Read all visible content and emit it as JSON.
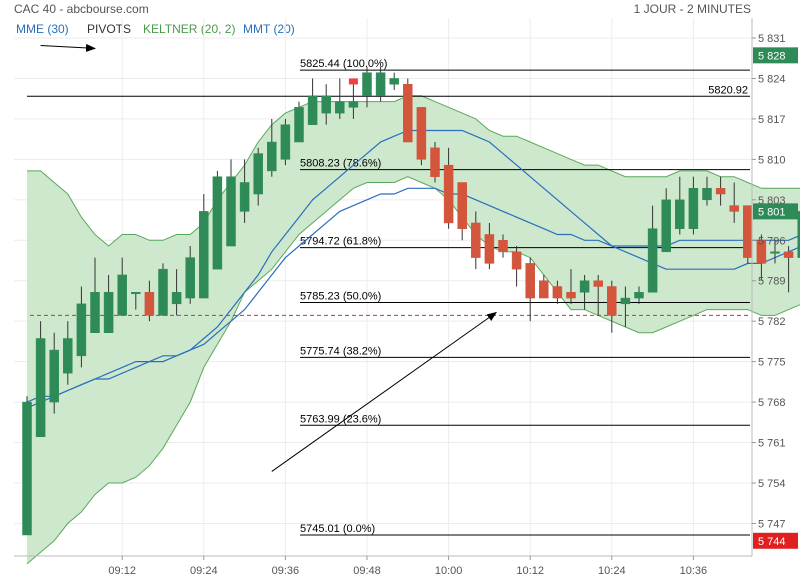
{
  "header": {
    "title": "CAC 40 - abcbourse.com",
    "period": "1 JOUR - 2 MINUTES"
  },
  "legend": {
    "mme": "MME (30)",
    "pivots": "PIVOTS",
    "keltner": "KELTNER (20, 2)",
    "mmt": "MMT (20)"
  },
  "colors": {
    "up": "#2e8b57",
    "down": "#d2553c",
    "band_fill": "#cde8cd",
    "band_line": "#5aa85a",
    "ma_line": "#2a6ebd",
    "level_line": "#000000",
    "last_price_box": "#2e8b57",
    "low_box": "#e02020",
    "dashed_line": "#d03030"
  },
  "chart_data": {
    "type": "candlestick",
    "title": "CAC 40 - abcbourse.com",
    "ylim": [
      5740,
      5834
    ],
    "y_ticks": [
      5831,
      5824,
      5817,
      5810,
      5803,
      5796,
      5789,
      5782,
      5775,
      5768,
      5761,
      5754,
      5747
    ],
    "y_tick_labels": [
      "5 831",
      "5 824",
      "5 817",
      "5 810",
      "5 803",
      "5 796",
      "5 789",
      "5 782",
      "5 775",
      "5 768",
      "5 761",
      "5 754",
      "5 747"
    ],
    "x_tick_labels": [
      {
        "i": 7,
        "label": "09:12"
      },
      {
        "i": 13,
        "label": "09:24"
      },
      {
        "i": 19,
        "label": "09:36"
      },
      {
        "i": 25,
        "label": "09:48"
      },
      {
        "i": 31,
        "label": "10:00"
      },
      {
        "i": 37,
        "label": "10:12"
      },
      {
        "i": 43,
        "label": "10:24"
      },
      {
        "i": 49,
        "label": "10:36"
      }
    ],
    "candles": [
      {
        "o": 5745,
        "h": 5769,
        "l": 5745,
        "c": 5768
      },
      {
        "o": 5762,
        "h": 5782,
        "l": 5762,
        "c": 5779
      },
      {
        "o": 5768,
        "h": 5780,
        "l": 5766,
        "c": 5777
      },
      {
        "o": 5773,
        "h": 5782,
        "l": 5771,
        "c": 5779
      },
      {
        "o": 5776,
        "h": 5788,
        "l": 5774,
        "c": 5785
      },
      {
        "o": 5780,
        "h": 5793,
        "l": 5780,
        "c": 5787
      },
      {
        "o": 5780,
        "h": 5790,
        "l": 5780,
        "c": 5787
      },
      {
        "o": 5783,
        "h": 5793,
        "l": 5783,
        "c": 5790
      },
      {
        "o": 5787,
        "h": 5787,
        "l": 5784,
        "c": 5787
      },
      {
        "o": 5787,
        "h": 5789,
        "l": 5782,
        "c": 5783
      },
      {
        "o": 5783,
        "h": 5792,
        "l": 5783,
        "c": 5791
      },
      {
        "o": 5785,
        "h": 5791,
        "l": 5783,
        "c": 5787
      },
      {
        "o": 5786,
        "h": 5795,
        "l": 5785,
        "c": 5793
      },
      {
        "o": 5786,
        "h": 5804,
        "l": 5786,
        "c": 5801
      },
      {
        "o": 5791,
        "h": 5808,
        "l": 5791,
        "c": 5807
      },
      {
        "o": 5795,
        "h": 5810,
        "l": 5795,
        "c": 5807
      },
      {
        "o": 5801,
        "h": 5810,
        "l": 5799,
        "c": 5806
      },
      {
        "o": 5804,
        "h": 5812,
        "l": 5802,
        "c": 5811
      },
      {
        "o": 5808,
        "h": 5817,
        "l": 5807,
        "c": 5813
      },
      {
        "o": 5810,
        "h": 5817,
        "l": 5809,
        "c": 5816
      },
      {
        "o": 5813,
        "h": 5820,
        "l": 5813,
        "c": 5819
      },
      {
        "o": 5816,
        "h": 5824,
        "l": 5816,
        "c": 5821
      },
      {
        "o": 5818,
        "h": 5823,
        "l": 5816,
        "c": 5821
      },
      {
        "o": 5818,
        "h": 5824,
        "l": 5817,
        "c": 5820
      },
      {
        "o": 5819,
        "h": 5824,
        "l": 5817,
        "c": 5820
      },
      {
        "o": 5821,
        "h": 5826,
        "l": 5819,
        "c": 5825
      },
      {
        "o": 5821,
        "h": 5826,
        "l": 5820,
        "c": 5825
      },
      {
        "o": 5823,
        "h": 5825,
        "l": 5822,
        "c": 5824
      },
      {
        "o": 5823,
        "h": 5824,
        "l": 5813,
        "c": 5813
      },
      {
        "o": 5819,
        "h": 5819,
        "l": 5809,
        "c": 5810
      },
      {
        "o": 5812,
        "h": 5813,
        "l": 5806,
        "c": 5807
      },
      {
        "o": 5809,
        "h": 5812,
        "l": 5798,
        "c": 5799
      },
      {
        "o": 5806,
        "h": 5806,
        "l": 5796,
        "c": 5798
      },
      {
        "o": 5799,
        "h": 5801,
        "l": 5791,
        "c": 5793
      },
      {
        "o": 5797,
        "h": 5799,
        "l": 5791,
        "c": 5792
      },
      {
        "o": 5796,
        "h": 5797,
        "l": 5793,
        "c": 5794
      },
      {
        "o": 5794,
        "h": 5795,
        "l": 5788,
        "c": 5791
      },
      {
        "o": 5792,
        "h": 5793,
        "l": 5782,
        "c": 5786
      },
      {
        "o": 5789,
        "h": 5790,
        "l": 5786,
        "c": 5786
      },
      {
        "o": 5788,
        "h": 5789,
        "l": 5785,
        "c": 5786
      },
      {
        "o": 5787,
        "h": 5791,
        "l": 5785,
        "c": 5786
      },
      {
        "o": 5787,
        "h": 5790,
        "l": 5784,
        "c": 5789
      },
      {
        "o": 5789,
        "h": 5790,
        "l": 5783,
        "c": 5788
      },
      {
        "o": 5788,
        "h": 5789,
        "l": 5780,
        "c": 5783
      },
      {
        "o": 5785,
        "h": 5788,
        "l": 5781,
        "c": 5786
      },
      {
        "o": 5786,
        "h": 5788,
        "l": 5785,
        "c": 5787
      },
      {
        "o": 5787,
        "h": 5802,
        "l": 5787,
        "c": 5798
      },
      {
        "o": 5794,
        "h": 5805,
        "l": 5794,
        "c": 5803
      },
      {
        "o": 5798,
        "h": 5807,
        "l": 5797,
        "c": 5803
      },
      {
        "o": 5798,
        "h": 5807,
        "l": 5797,
        "c": 5805
      },
      {
        "o": 5803,
        "h": 5807,
        "l": 5802,
        "c": 5805
      },
      {
        "o": 5805,
        "h": 5807,
        "l": 5802,
        "c": 5804
      },
      {
        "o": 5802,
        "h": 5806,
        "l": 5799,
        "c": 5801
      },
      {
        "o": 5802,
        "h": 5802,
        "l": 5792,
        "c": 5793
      },
      {
        "o": 5796,
        "h": 5797,
        "l": 5789,
        "c": 5792
      },
      {
        "o": 5794,
        "h": 5796,
        "l": 5792,
        "c": 5794
      },
      {
        "o": 5794,
        "h": 5795,
        "l": 5787,
        "c": 5793
      },
      {
        "o": 5793,
        "h": 5801,
        "l": 5793,
        "c": 5801
      }
    ],
    "keltner": {
      "name": "KELTNER (20, 2)",
      "upper": [
        5808,
        5808,
        5806,
        5804,
        5800,
        5797,
        5795,
        5797,
        5797,
        5796,
        5796,
        5797,
        5797,
        5799,
        5803,
        5806,
        5809,
        5813,
        5816,
        5818,
        5819,
        5820,
        5820,
        5820,
        5820,
        5820,
        5820,
        5820,
        5821,
        5821,
        5820,
        5819,
        5818,
        5817,
        5815,
        5814,
        5814,
        5813,
        5812,
        5811,
        5810,
        5809,
        5809,
        5808,
        5807,
        5807,
        5807,
        5807,
        5808,
        5808,
        5808,
        5807,
        5807,
        5806,
        5805,
        5805,
        5805,
        5805
      ],
      "lower": [
        5740,
        5742,
        5744,
        5747,
        5749,
        5752,
        5754,
        5754,
        5755,
        5757,
        5760,
        5764,
        5768,
        5774,
        5778,
        5782,
        5787,
        5789,
        5791,
        5794,
        5797,
        5799,
        5801,
        5803,
        5805,
        5806,
        5806,
        5806,
        5807,
        5806,
        5805,
        5803,
        5800,
        5797,
        5795,
        5794,
        5794,
        5793,
        5790,
        5787,
        5784,
        5784,
        5783,
        5782,
        5781,
        5780,
        5780,
        5781,
        5782,
        5783,
        5784,
        5784,
        5784,
        5784,
        5783,
        5783,
        5784,
        5785
      ]
    },
    "mme": {
      "name": "MME (30)",
      "values": [
        5767,
        5768,
        5769,
        5770,
        5771,
        5772,
        5772,
        5773,
        5774,
        5775,
        5776,
        5776,
        5777,
        5778,
        5780,
        5782,
        5784,
        5787,
        5790,
        5793,
        5795,
        5797,
        5799,
        5801,
        5802,
        5803,
        5804,
        5804,
        5805,
        5805,
        5805,
        5804,
        5804,
        5803,
        5802,
        5801,
        5800,
        5799,
        5798,
        5797,
        5797,
        5796,
        5796,
        5795,
        5795,
        5795,
        5795,
        5795,
        5796,
        5796,
        5796,
        5796,
        5796,
        5796,
        5796,
        5796,
        5796,
        5797
      ]
    },
    "mmt": {
      "name": "MMT (20)",
      "values": [
        5768,
        5769,
        5769,
        5770,
        5771,
        5772,
        5773,
        5774,
        5775,
        5775,
        5775,
        5776,
        5777,
        5779,
        5781,
        5784,
        5787,
        5790,
        5794,
        5797,
        5800,
        5803,
        5805,
        5807,
        5809,
        5811,
        5813,
        5814,
        5815,
        5815,
        5815,
        5815,
        5815,
        5814,
        5813,
        5811,
        5809,
        5807,
        5805,
        5803,
        5801,
        5799,
        5797,
        5795,
        5794,
        5793,
        5792,
        5791,
        5791,
        5791,
        5791,
        5791,
        5791,
        5792,
        5792,
        5793,
        5794,
        5795
      ]
    },
    "fib_levels": [
      {
        "value": 5825.44,
        "label": "5825.44  (100.0%)"
      },
      {
        "value": 5808.23,
        "label": "5808.23  (78.6%)"
      },
      {
        "value": 5794.72,
        "label": "5794.72  (61.8%)"
      },
      {
        "value": 5785.23,
        "label": "5785.23  (50.0%)"
      },
      {
        "value": 5775.74,
        "label": "5775.74  (38.2%)"
      },
      {
        "value": 5763.99,
        "label": "5763.99  (23.6%)"
      },
      {
        "value": 5745.01,
        "label": "5745.01  (0.0%)"
      }
    ],
    "resistance": {
      "value": 5820.92,
      "label": "5820.92"
    },
    "pivot_dashed": {
      "value": 5783
    },
    "price_boxes": [
      {
        "value": 5828,
        "label": "5 828",
        "kind": "up"
      },
      {
        "value": 5801,
        "label": "5 801",
        "kind": "up"
      },
      {
        "value": 5744,
        "label": "5 744",
        "kind": "low"
      }
    ],
    "annotations": [
      {
        "type": "arrow",
        "from": {
          "i": 1,
          "v": 5829.7
        },
        "to": {
          "i": 5,
          "v": 5829.2
        }
      },
      {
        "type": "arrow",
        "from": {
          "i": 18,
          "v": 5756
        },
        "to": {
          "i": 34.5,
          "v": 5783.5
        }
      }
    ]
  }
}
